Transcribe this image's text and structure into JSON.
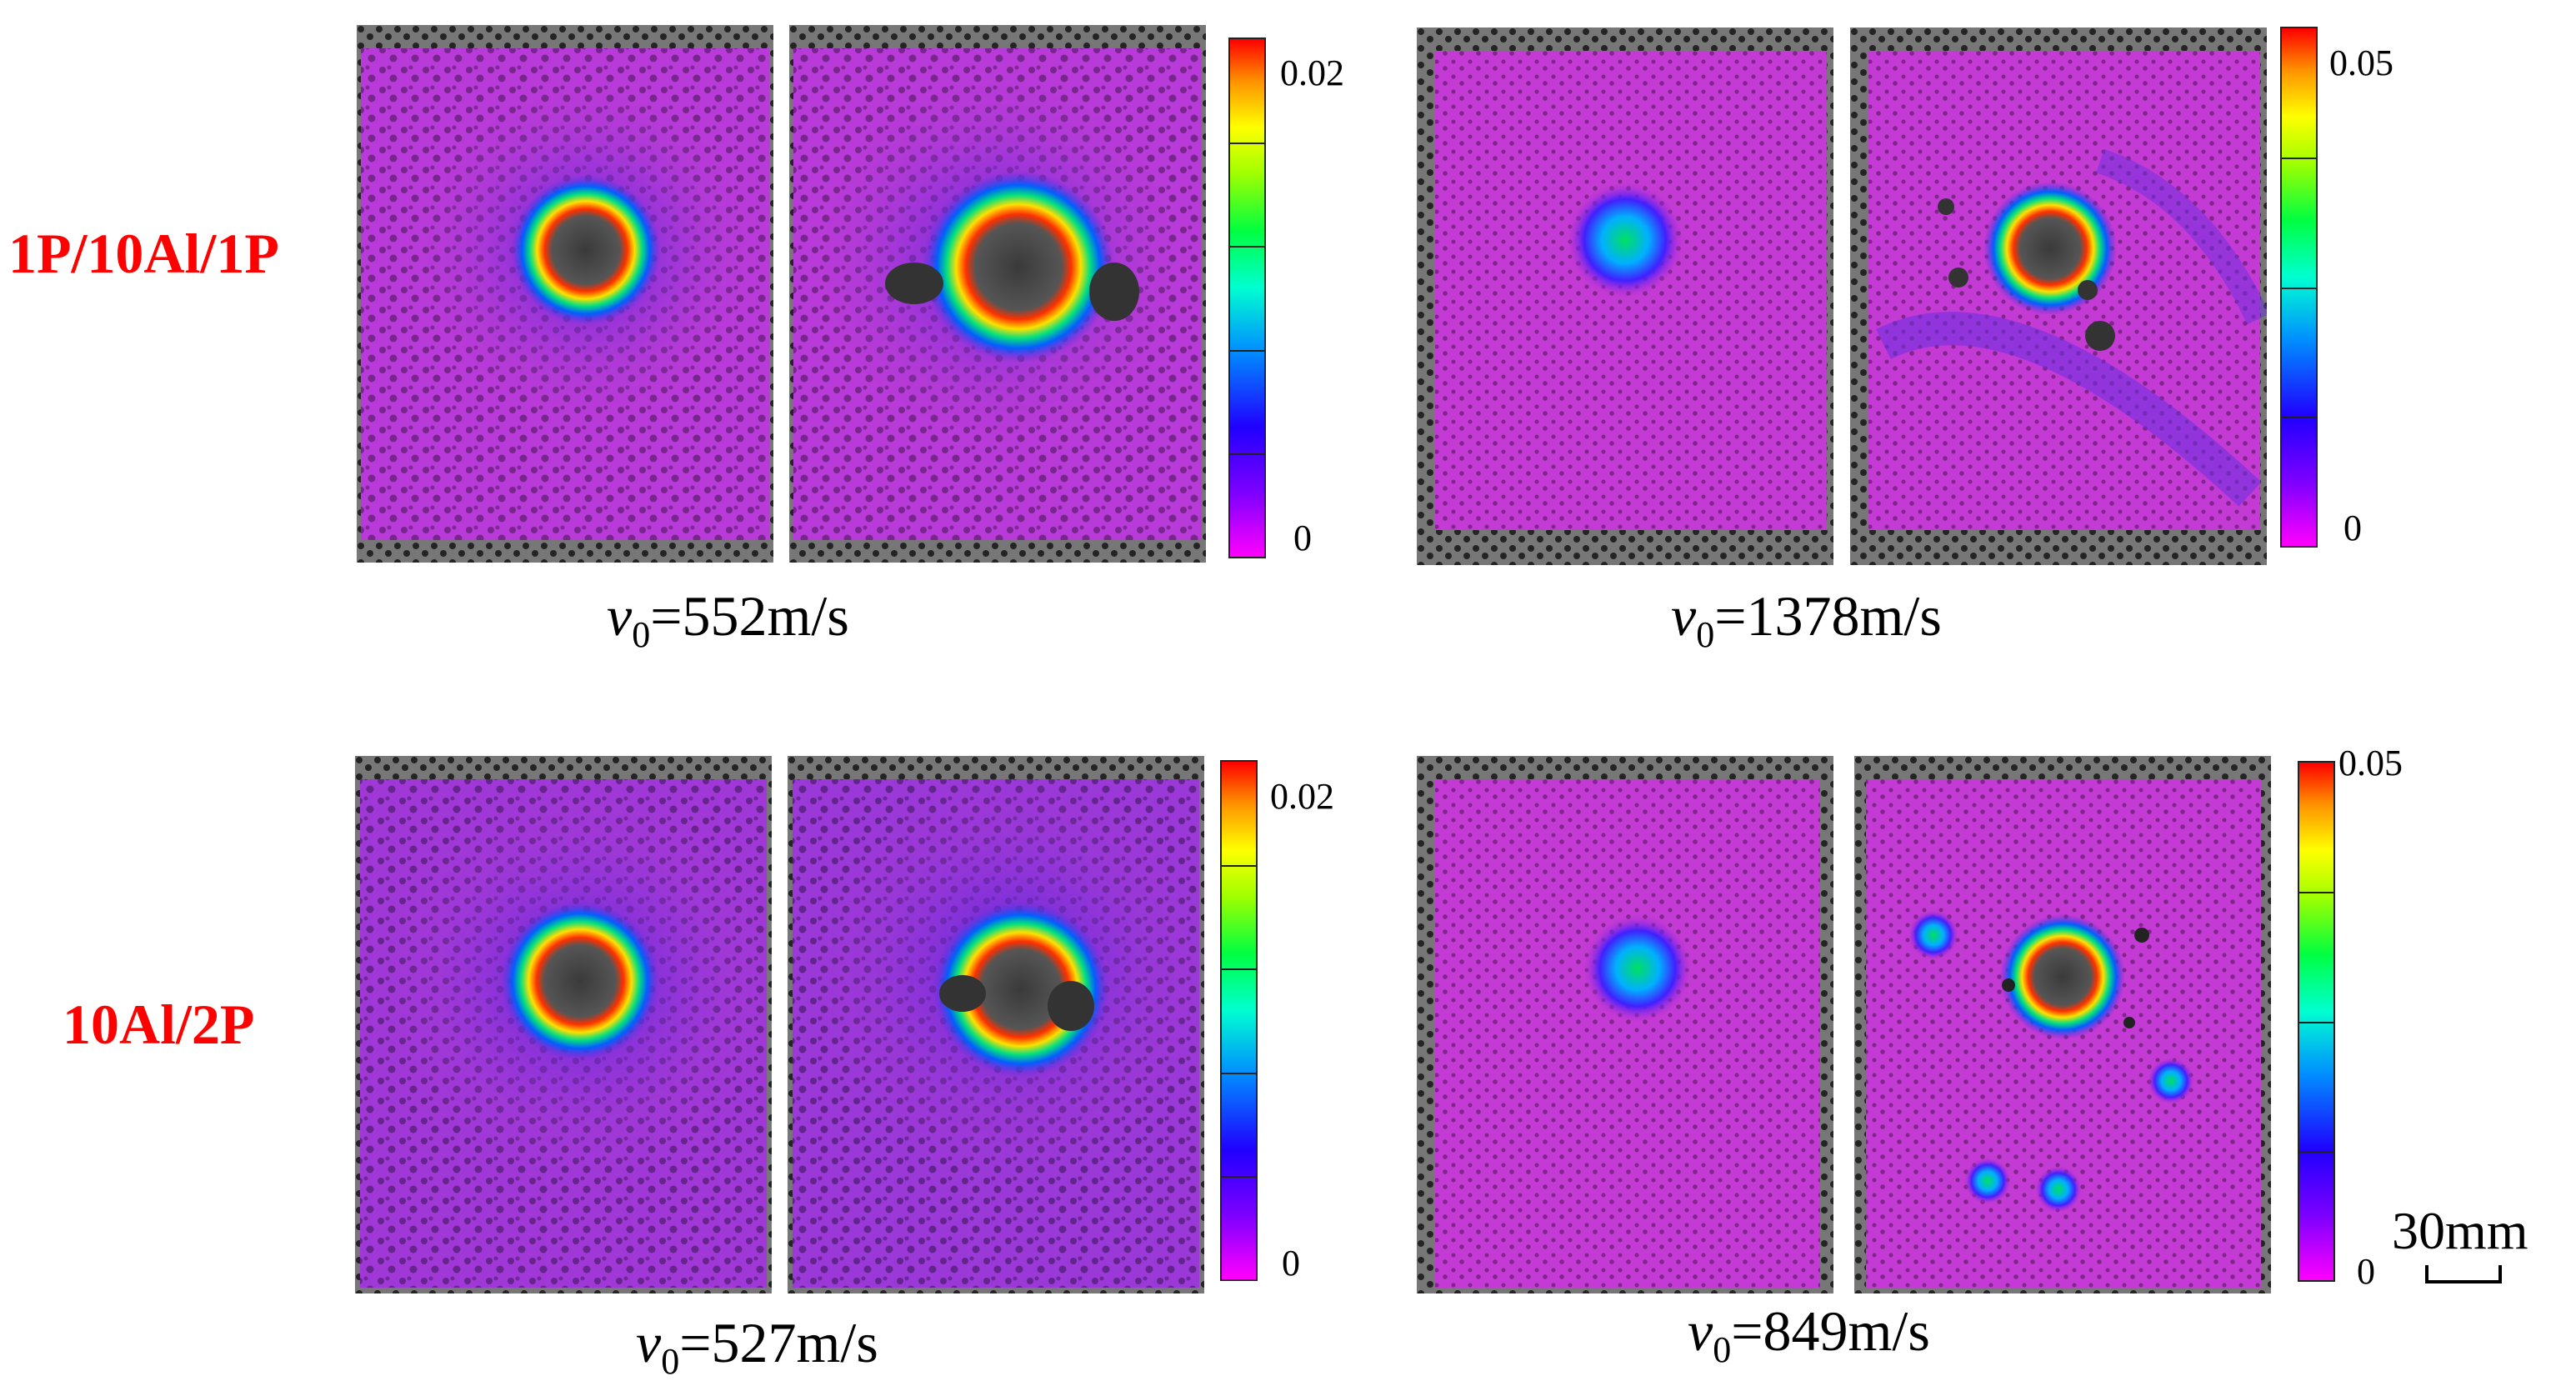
{
  "rows": [
    {
      "label": "1P/10Al/1P"
    },
    {
      "label": "10Al/2P"
    }
  ],
  "groups": [
    {
      "velocity": {
        "symbol": "v",
        "subscript": "0",
        "value": "=552m/s"
      },
      "colorbar": {
        "max": "0.02",
        "min": "0"
      }
    },
    {
      "velocity": {
        "symbol": "v",
        "subscript": "0",
        "value": "=1378m/s"
      },
      "colorbar": {
        "max": "0.05",
        "min": "0"
      }
    },
    {
      "velocity": {
        "symbol": "v",
        "subscript": "0",
        "value": "=527m/s"
      },
      "colorbar": {
        "max": "0.02",
        "min": "0"
      }
    },
    {
      "velocity": {
        "symbol": "v",
        "subscript": "0",
        "value": "=849m/s"
      },
      "colorbar": {
        "max": "0.05",
        "min": "0"
      }
    }
  ],
  "scale_bar": {
    "label": "30mm"
  },
  "colors": {
    "label_red": "#ff0000",
    "field_low": "#c03ad0",
    "field_mid": "#6a28d8",
    "hole_dark": "#2a2a2a"
  }
}
